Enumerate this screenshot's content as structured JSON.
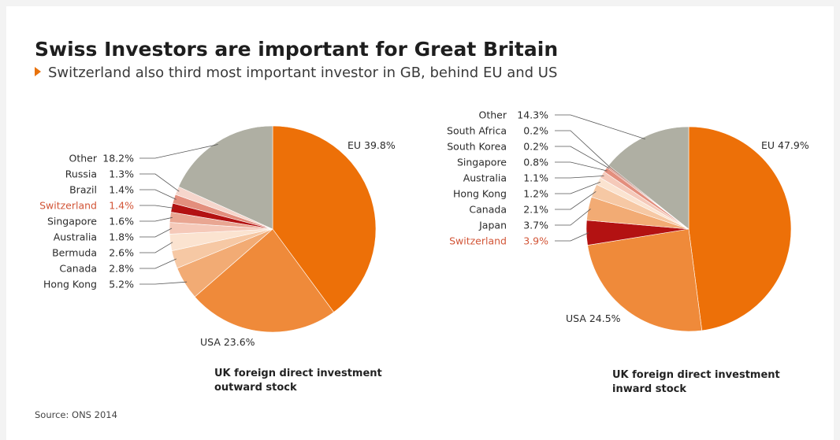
{
  "header": {
    "title": "Swiss Investors are important for Great Britain",
    "subtitle": "Switzerland also third most important investor in GB, behind EU and US"
  },
  "source": "Source: ONS 2014",
  "colors": {
    "accent": "#e8720c",
    "highlight_text": "#d25537",
    "leader_line": "#555555"
  },
  "chart_data": [
    {
      "type": "pie",
      "title": "UK foreign direct investment outward stock",
      "caption_lines": [
        "UK foreign direct investment",
        "outward stock"
      ],
      "slices": [
        {
          "name": "EU",
          "label": "EU 39.8%",
          "value": 39.8,
          "color": "#ed7008"
        },
        {
          "name": "USA",
          "label": "USA 23.6%",
          "value": 23.6,
          "color": "#ef8a3a"
        },
        {
          "name": "Hong Kong",
          "value_label": "5.2%",
          "value": 5.2,
          "color": "#f2ab74"
        },
        {
          "name": "Canada",
          "value_label": "2.8%",
          "value": 2.8,
          "color": "#f6c8a4"
        },
        {
          "name": "Bermuda",
          "value_label": "2.6%",
          "value": 2.6,
          "color": "#fbe3d0"
        },
        {
          "name": "Australia",
          "value_label": "1.8%",
          "value": 1.8,
          "color": "#f5c9b9"
        },
        {
          "name": "Singapore",
          "value_label": "1.6%",
          "value": 1.6,
          "color": "#e9a692"
        },
        {
          "name": "Switzerland",
          "value_label": "1.4%",
          "value": 1.4,
          "color": "#b31212",
          "highlight": true
        },
        {
          "name": "Brazil",
          "value_label": "1.4%",
          "value": 1.4,
          "color": "#e38e7d"
        },
        {
          "name": "Russia",
          "value_label": "1.3%",
          "value": 1.3,
          "color": "#f6d6cc"
        },
        {
          "name": "Other",
          "value_label": "18.2%",
          "value": 18.2,
          "color": "#afafa3"
        }
      ],
      "legend_order": [
        "Other",
        "Russia",
        "Brazil",
        "Switzerland",
        "Singapore",
        "Australia",
        "Bermuda",
        "Canada",
        "Hong Kong"
      ]
    },
    {
      "type": "pie",
      "title": "UK foreign direct investment inward stock",
      "caption_lines": [
        "UK foreign direct investment",
        "inward stock"
      ],
      "slices": [
        {
          "name": "EU",
          "label": "EU 47.9%",
          "value": 47.9,
          "color": "#ed7008"
        },
        {
          "name": "USA",
          "label": "USA 24.5%",
          "value": 24.5,
          "color": "#ef8a3a"
        },
        {
          "name": "Switzerland",
          "value_label": "3.9%",
          "value": 3.9,
          "color": "#b31212",
          "highlight": true
        },
        {
          "name": "Japan",
          "value_label": "3.7%",
          "value": 3.7,
          "color": "#f2ab74"
        },
        {
          "name": "Canada",
          "value_label": "2.1%",
          "value": 2.1,
          "color": "#f6c8a4"
        },
        {
          "name": "Hong Kong",
          "value_label": "1.2%",
          "value": 1.2,
          "color": "#fbe3d0"
        },
        {
          "name": "Australia",
          "value_label": "1.1%",
          "value": 1.1,
          "color": "#f5c9b9"
        },
        {
          "name": "Singapore",
          "value_label": "0.8%",
          "value": 0.8,
          "color": "#e38e7d"
        },
        {
          "name": "South Korea",
          "value_label": "0.2%",
          "value": 0.2,
          "color": "#d2705e"
        },
        {
          "name": "South Africa",
          "value_label": "0.2%",
          "value": 0.2,
          "color": "#8a4a3a"
        },
        {
          "name": "Other",
          "value_label": "14.3%",
          "value": 14.3,
          "color": "#afafa3"
        }
      ],
      "legend_order": [
        "Other",
        "South Africa",
        "South Korea",
        "Singapore",
        "Australia",
        "Hong Kong",
        "Canada",
        "Japan",
        "Switzerland"
      ]
    }
  ]
}
